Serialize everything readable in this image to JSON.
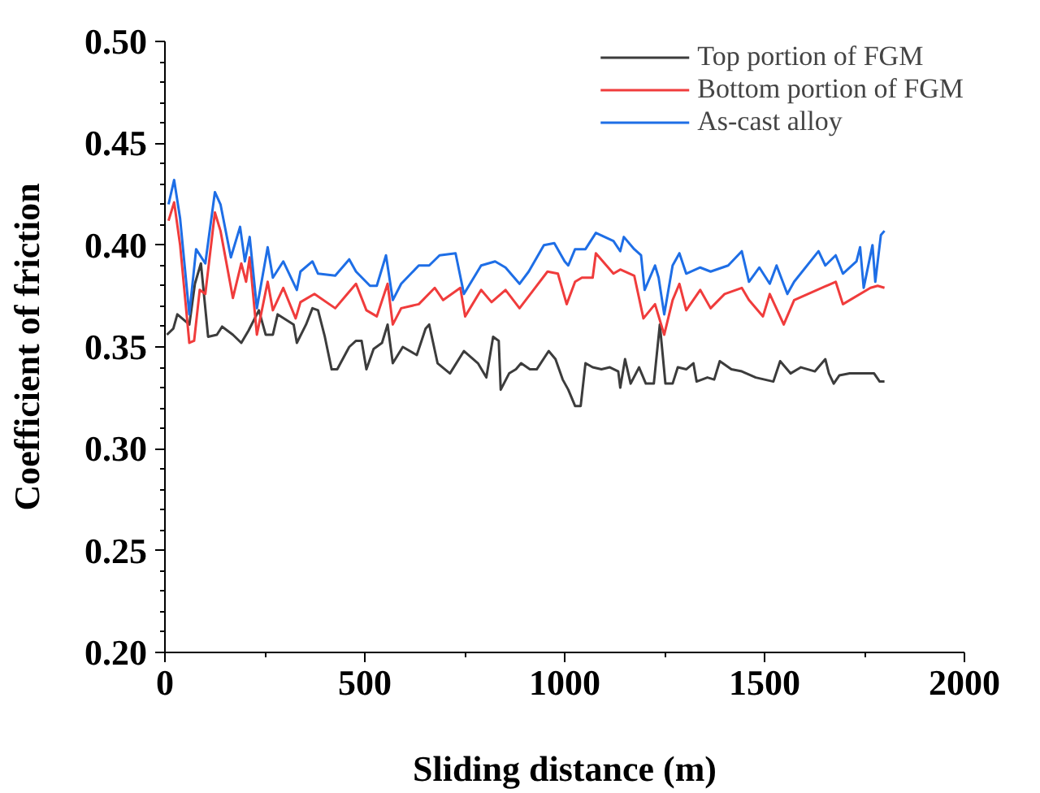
{
  "chart_data": {
    "type": "line",
    "xlabel": "Sliding distance (m)",
    "ylabel": "Coefficient of friction",
    "xlim": [
      0,
      2000
    ],
    "ylim": [
      0.2,
      0.5
    ],
    "xticks": [
      0,
      {
        "value": 250,
        "label": null
      },
      500,
      {
        "value": 750,
        "label": null
      },
      1000,
      {
        "value": 1250,
        "label": null
      },
      1500,
      {
        "value": 1750,
        "label": null
      },
      2000
    ],
    "yticks": [
      {
        "value": 0.2,
        "label": "0.20"
      },
      {
        "value": 0.21,
        "label": null
      },
      {
        "value": 0.22,
        "label": null
      },
      {
        "value": 0.23,
        "label": null
      },
      {
        "value": 0.24,
        "label": null
      },
      0.25,
      {
        "value": 0.26,
        "label": null
      },
      {
        "value": 0.27,
        "label": null
      },
      {
        "value": 0.28,
        "label": null
      },
      {
        "value": 0.29,
        "label": null
      },
      {
        "value": 0.3,
        "label": "0.30"
      },
      {
        "value": 0.31,
        "label": null
      },
      {
        "value": 0.32,
        "label": null
      },
      {
        "value": 0.33,
        "label": null
      },
      {
        "value": 0.34,
        "label": null
      },
      0.35,
      {
        "value": 0.36,
        "label": null
      },
      {
        "value": 0.37,
        "label": null
      },
      {
        "value": 0.38,
        "label": null
      },
      {
        "value": 0.39,
        "label": null
      },
      {
        "value": 0.4,
        "label": "0.40"
      },
      {
        "value": 0.41,
        "label": null
      },
      {
        "value": 0.42,
        "label": null
      },
      {
        "value": 0.43,
        "label": null
      },
      {
        "value": 0.44,
        "label": null
      },
      0.45,
      {
        "value": 0.46,
        "label": null
      },
      {
        "value": 0.47,
        "label": null
      },
      {
        "value": 0.48,
        "label": null
      },
      {
        "value": 0.49,
        "label": null
      },
      {
        "value": 0.5,
        "label": "0.50"
      }
    ],
    "grid": false,
    "legend": "top right",
    "marker": "none",
    "line_style": "solid",
    "series": [
      {
        "name": "Top portion of FGM",
        "color": "#3c3c3c",
        "x": [
          5,
          21,
          31,
          61,
          75,
          90,
          108,
          130,
          143,
          170,
          191,
          209,
          235,
          252,
          270,
          282,
          322,
          330,
          353,
          369,
          383,
          400,
          417,
          431,
          461,
          478,
          492,
          504,
          522,
          543,
          557,
          570,
          595,
          630,
          652,
          661,
          682,
          713,
          748,
          783,
          804,
          821,
          835,
          840,
          861,
          878,
          891,
          913,
          930,
          960,
          977,
          995,
          1009,
          1026,
          1040,
          1052,
          1070,
          1092,
          1113,
          1134,
          1139,
          1151,
          1165,
          1186,
          1203,
          1223,
          1238,
          1252,
          1270,
          1283,
          1304,
          1322,
          1330,
          1357,
          1374,
          1388,
          1417,
          1443,
          1478,
          1522,
          1539,
          1565,
          1591,
          1626,
          1652,
          1661,
          1673,
          1687,
          1713,
          1774,
          1788,
          1800
        ],
        "values": [
          0.356,
          0.359,
          0.366,
          0.361,
          0.381,
          0.391,
          0.355,
          0.356,
          0.36,
          0.356,
          0.352,
          0.358,
          0.368,
          0.356,
          0.356,
          0.366,
          0.361,
          0.352,
          0.361,
          0.369,
          0.368,
          0.355,
          0.339,
          0.339,
          0.35,
          0.353,
          0.353,
          0.339,
          0.349,
          0.352,
          0.361,
          0.342,
          0.35,
          0.346,
          0.359,
          0.361,
          0.342,
          0.337,
          0.348,
          0.342,
          0.335,
          0.355,
          0.353,
          0.329,
          0.337,
          0.339,
          0.342,
          0.339,
          0.339,
          0.348,
          0.344,
          0.334,
          0.329,
          0.321,
          0.321,
          0.342,
          0.34,
          0.339,
          0.34,
          0.338,
          0.33,
          0.344,
          0.332,
          0.34,
          0.332,
          0.332,
          0.361,
          0.332,
          0.332,
          0.34,
          0.339,
          0.342,
          0.333,
          0.335,
          0.334,
          0.343,
          0.339,
          0.338,
          0.335,
          0.333,
          0.343,
          0.337,
          0.34,
          0.338,
          0.344,
          0.337,
          0.332,
          0.336,
          0.337,
          0.337,
          0.333,
          0.333
        ]
      },
      {
        "name": "Bottom portion of FGM",
        "color": "#f03c3c",
        "x": [
          9,
          23,
          38,
          61,
          73,
          87,
          101,
          125,
          139,
          170,
          191,
          203,
          212,
          230,
          257,
          270,
          296,
          327,
          339,
          374,
          426,
          452,
          478,
          504,
          530,
          557,
          570,
          591,
          635,
          675,
          696,
          739,
          751,
          791,
          817,
          852,
          887,
          922,
          957,
          983,
          1005,
          1026,
          1043,
          1070,
          1078,
          1122,
          1139,
          1174,
          1197,
          1226,
          1249,
          1270,
          1287,
          1304,
          1339,
          1365,
          1400,
          1443,
          1461,
          1496,
          1513,
          1548,
          1574,
          1678,
          1696,
          1765,
          1783,
          1800
        ],
        "values": [
          0.412,
          0.421,
          0.4,
          0.352,
          0.353,
          0.378,
          0.376,
          0.416,
          0.407,
          0.374,
          0.391,
          0.382,
          0.394,
          0.356,
          0.382,
          0.368,
          0.379,
          0.364,
          0.372,
          0.376,
          0.369,
          0.375,
          0.381,
          0.368,
          0.365,
          0.381,
          0.361,
          0.369,
          0.371,
          0.379,
          0.373,
          0.379,
          0.365,
          0.378,
          0.372,
          0.378,
          0.369,
          0.378,
          0.387,
          0.386,
          0.371,
          0.382,
          0.384,
          0.384,
          0.396,
          0.386,
          0.388,
          0.385,
          0.364,
          0.371,
          0.356,
          0.373,
          0.381,
          0.368,
          0.378,
          0.369,
          0.376,
          0.379,
          0.373,
          0.365,
          0.376,
          0.361,
          0.373,
          0.382,
          0.371,
          0.379,
          0.38,
          0.379
        ]
      },
      {
        "name": "As-cast alloy",
        "color": "#1e6ee6",
        "x": [
          9,
          23,
          38,
          61,
          78,
          101,
          125,
          139,
          165,
          188,
          200,
          212,
          230,
          257,
          270,
          296,
          330,
          339,
          369,
          383,
          426,
          461,
          478,
          513,
          530,
          553,
          570,
          591,
          635,
          661,
          687,
          727,
          748,
          791,
          826,
          852,
          887,
          910,
          948,
          974,
          1000,
          1009,
          1026,
          1052,
          1078,
          1122,
          1139,
          1148,
          1174,
          1191,
          1200,
          1226,
          1235,
          1249,
          1270,
          1287,
          1304,
          1339,
          1365,
          1409,
          1443,
          1461,
          1487,
          1513,
          1530,
          1557,
          1574,
          1635,
          1652,
          1678,
          1696,
          1730,
          1739,
          1748,
          1770,
          1777,
          1791,
          1800
        ],
        "values": [
          0.42,
          0.432,
          0.413,
          0.366,
          0.398,
          0.391,
          0.426,
          0.42,
          0.394,
          0.409,
          0.392,
          0.404,
          0.369,
          0.399,
          0.384,
          0.392,
          0.378,
          0.387,
          0.392,
          0.386,
          0.385,
          0.393,
          0.387,
          0.38,
          0.38,
          0.395,
          0.373,
          0.381,
          0.39,
          0.39,
          0.395,
          0.396,
          0.376,
          0.39,
          0.392,
          0.389,
          0.381,
          0.387,
          0.4,
          0.401,
          0.392,
          0.39,
          0.398,
          0.398,
          0.406,
          0.402,
          0.397,
          0.404,
          0.398,
          0.395,
          0.378,
          0.39,
          0.384,
          0.366,
          0.39,
          0.396,
          0.386,
          0.389,
          0.387,
          0.39,
          0.397,
          0.382,
          0.389,
          0.381,
          0.39,
          0.376,
          0.382,
          0.397,
          0.39,
          0.395,
          0.386,
          0.392,
          0.399,
          0.379,
          0.4,
          0.382,
          0.405,
          0.407
        ]
      }
    ]
  }
}
